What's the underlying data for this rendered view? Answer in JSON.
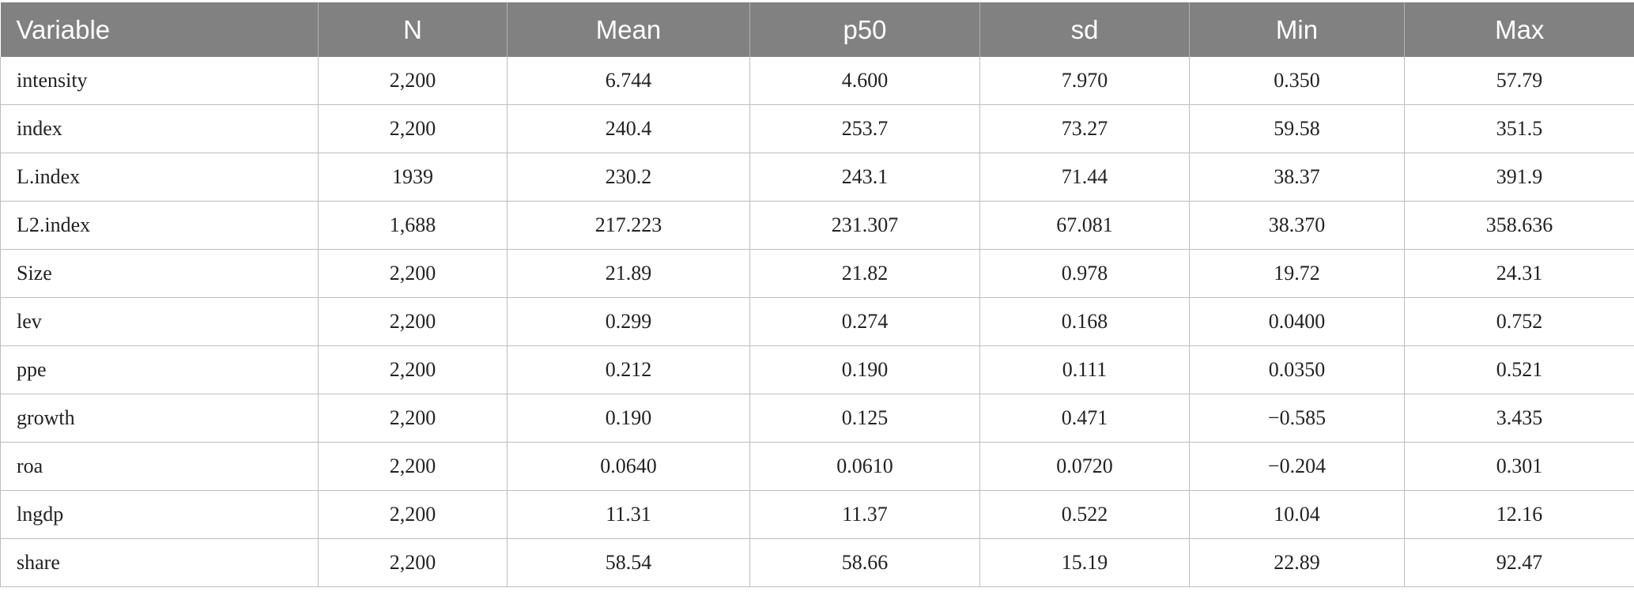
{
  "table": {
    "headers": [
      "Variable",
      "N",
      "Mean",
      "p50",
      "sd",
      "Min",
      "Max"
    ],
    "rows": [
      [
        "intensity",
        "2,200",
        "6.744",
        "4.600",
        "7.970",
        "0.350",
        "57.79"
      ],
      [
        "index",
        "2,200",
        "240.4",
        "253.7",
        "73.27",
        "59.58",
        "351.5"
      ],
      [
        "L.index",
        "1939",
        "230.2",
        "243.1",
        "71.44",
        "38.37",
        "391.9"
      ],
      [
        "L2.index",
        "1,688",
        "217.223",
        "231.307",
        "67.081",
        "38.370",
        "358.636"
      ],
      [
        "Size",
        "2,200",
        "21.89",
        "21.82",
        "0.978",
        "19.72",
        "24.31"
      ],
      [
        "lev",
        "2,200",
        "0.299",
        "0.274",
        "0.168",
        "0.0400",
        "0.752"
      ],
      [
        "ppe",
        "2,200",
        "0.212",
        "0.190",
        "0.111",
        "0.0350",
        "0.521"
      ],
      [
        "growth",
        "2,200",
        "0.190",
        "0.125",
        "0.471",
        "−0.585",
        "3.435"
      ],
      [
        "roa",
        "2,200",
        "0.0640",
        "0.0610",
        "0.0720",
        "−0.204",
        "0.301"
      ],
      [
        "lngdp",
        "2,200",
        "11.31",
        "11.37",
        "0.522",
        "10.04",
        "12.16"
      ],
      [
        "share",
        "2,200",
        "58.54",
        "58.66",
        "15.19",
        "22.89",
        "92.47"
      ]
    ]
  }
}
